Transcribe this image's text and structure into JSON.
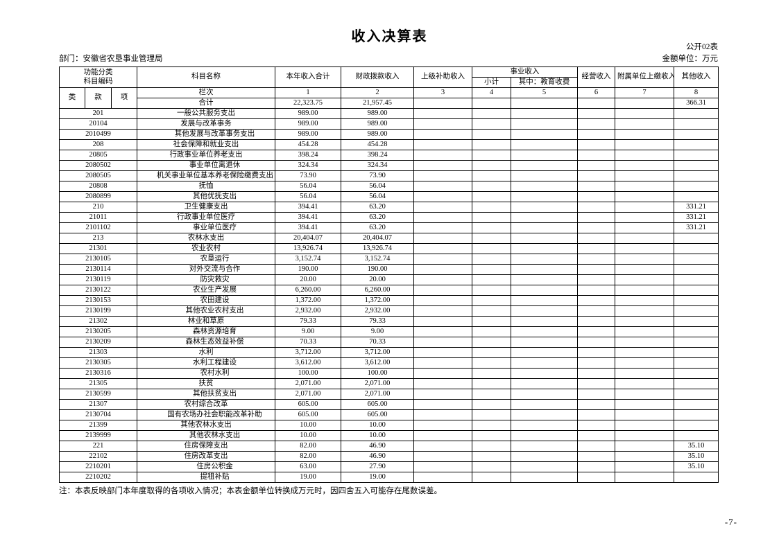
{
  "page": {
    "title": "收入决算表",
    "table_label": "公开02表",
    "department_label": "部门：安徽省农垦事业管理局",
    "unit_label": "金额单位：万元",
    "note": "注：本表反映部门本年度取得的各项收入情况；本表金额单位转换成万元时，因四舍五入可能存在尾数误差。",
    "page_number": "-7-"
  },
  "table": {
    "headers": {
      "code_group_line1": "功能分类",
      "code_group_line2": "科目编码",
      "code_cols": [
        "类",
        "款",
        "项"
      ],
      "subject_name": "科目名称",
      "col_total": "本年收入合计",
      "col_fiscal": "财政拨款收入",
      "col_superior": "上级补助收入",
      "col_business": "事业收入",
      "col_business_sub_1": "小计",
      "col_business_sub_2": "其中：教育收费",
      "col_operating": "经营收入",
      "col_affiliated": "附属单位上缴收入",
      "col_other": "其他收入",
      "lanci_label": "栏次",
      "col_numbers": [
        "1",
        "2",
        "3",
        "4",
        "5",
        "6",
        "7",
        "8"
      ]
    },
    "total_row": {
      "label": "合计",
      "values": [
        "22,323.75",
        "21,957.45",
        "",
        "",
        "",
        "",
        "",
        "366.31"
      ]
    },
    "rows": [
      {
        "code": "201",
        "name": "一般公共服务支出",
        "indent": 0,
        "v": [
          "989.00",
          "989.00",
          "",
          "",
          "",
          "",
          "",
          ""
        ]
      },
      {
        "code": "20104",
        "name": "发展与改革事务",
        "indent": 0,
        "v": [
          "989.00",
          "989.00",
          "",
          "",
          "",
          "",
          "",
          ""
        ]
      },
      {
        "code": "2010499",
        "name": "其他发展与改革事务支出",
        "indent": 1,
        "v": [
          "989.00",
          "989.00",
          "",
          "",
          "",
          "",
          "",
          ""
        ]
      },
      {
        "code": "208",
        "name": "社会保障和就业支出",
        "indent": 0,
        "v": [
          "454.28",
          "454.28",
          "",
          "",
          "",
          "",
          "",
          ""
        ]
      },
      {
        "code": "20805",
        "name": "行政事业单位养老支出",
        "indent": 0,
        "v": [
          "398.24",
          "398.24",
          "",
          "",
          "",
          "",
          "",
          ""
        ]
      },
      {
        "code": "2080502",
        "name": "事业单位离退休",
        "indent": 1,
        "v": [
          "324.34",
          "324.34",
          "",
          "",
          "",
          "",
          "",
          ""
        ]
      },
      {
        "code": "2080505",
        "name": "机关事业单位基本养老保险缴费支出",
        "indent": 1,
        "v": [
          "73.90",
          "73.90",
          "",
          "",
          "",
          "",
          "",
          ""
        ]
      },
      {
        "code": "20808",
        "name": "抚恤",
        "indent": 0,
        "v": [
          "56.04",
          "56.04",
          "",
          "",
          "",
          "",
          "",
          ""
        ]
      },
      {
        "code": "2080899",
        "name": "其他优抚支出",
        "indent": 1,
        "v": [
          "56.04",
          "56.04",
          "",
          "",
          "",
          "",
          "",
          ""
        ]
      },
      {
        "code": "210",
        "name": "卫生健康支出",
        "indent": 0,
        "v": [
          "394.41",
          "63.20",
          "",
          "",
          "",
          "",
          "",
          "331.21"
        ]
      },
      {
        "code": "21011",
        "name": "行政事业单位医疗",
        "indent": 0,
        "v": [
          "394.41",
          "63.20",
          "",
          "",
          "",
          "",
          "",
          "331.21"
        ]
      },
      {
        "code": "2101102",
        "name": "事业单位医疗",
        "indent": 1,
        "v": [
          "394.41",
          "63.20",
          "",
          "",
          "",
          "",
          "",
          "331.21"
        ]
      },
      {
        "code": "213",
        "name": "农林水支出",
        "indent": 0,
        "v": [
          "20,404.07",
          "20,404.07",
          "",
          "",
          "",
          "",
          "",
          ""
        ]
      },
      {
        "code": "21301",
        "name": "农业农村",
        "indent": 0,
        "v": [
          "13,926.74",
          "13,926.74",
          "",
          "",
          "",
          "",
          "",
          ""
        ]
      },
      {
        "code": "2130105",
        "name": "农垦运行",
        "indent": 1,
        "v": [
          "3,152.74",
          "3,152.74",
          "",
          "",
          "",
          "",
          "",
          ""
        ]
      },
      {
        "code": "2130114",
        "name": "对外交流与合作",
        "indent": 1,
        "v": [
          "190.00",
          "190.00",
          "",
          "",
          "",
          "",
          "",
          ""
        ]
      },
      {
        "code": "2130119",
        "name": "防灾救灾",
        "indent": 1,
        "v": [
          "20.00",
          "20.00",
          "",
          "",
          "",
          "",
          "",
          ""
        ]
      },
      {
        "code": "2130122",
        "name": "农业生产发展",
        "indent": 1,
        "v": [
          "6,260.00",
          "6,260.00",
          "",
          "",
          "",
          "",
          "",
          ""
        ]
      },
      {
        "code": "2130153",
        "name": "农田建设",
        "indent": 1,
        "v": [
          "1,372.00",
          "1,372.00",
          "",
          "",
          "",
          "",
          "",
          ""
        ]
      },
      {
        "code": "2130199",
        "name": "其他农业农村支出",
        "indent": 1,
        "v": [
          "2,932.00",
          "2,932.00",
          "",
          "",
          "",
          "",
          "",
          ""
        ]
      },
      {
        "code": "21302",
        "name": "林业和草原",
        "indent": 0,
        "v": [
          "79.33",
          "79.33",
          "",
          "",
          "",
          "",
          "",
          ""
        ]
      },
      {
        "code": "2130205",
        "name": "森林资源培育",
        "indent": 1,
        "v": [
          "9.00",
          "9.00",
          "",
          "",
          "",
          "",
          "",
          ""
        ]
      },
      {
        "code": "2130209",
        "name": "森林生态效益补偿",
        "indent": 1,
        "v": [
          "70.33",
          "70.33",
          "",
          "",
          "",
          "",
          "",
          ""
        ]
      },
      {
        "code": "21303",
        "name": "水利",
        "indent": 0,
        "v": [
          "3,712.00",
          "3,712.00",
          "",
          "",
          "",
          "",
          "",
          ""
        ]
      },
      {
        "code": "2130305",
        "name": "水利工程建设",
        "indent": 1,
        "v": [
          "3,612.00",
          "3,612.00",
          "",
          "",
          "",
          "",
          "",
          ""
        ]
      },
      {
        "code": "2130316",
        "name": "农村水利",
        "indent": 1,
        "v": [
          "100.00",
          "100.00",
          "",
          "",
          "",
          "",
          "",
          ""
        ]
      },
      {
        "code": "21305",
        "name": "扶贫",
        "indent": 0,
        "v": [
          "2,071.00",
          "2,071.00",
          "",
          "",
          "",
          "",
          "",
          ""
        ]
      },
      {
        "code": "2130599",
        "name": "其他扶贫支出",
        "indent": 1,
        "v": [
          "2,071.00",
          "2,071.00",
          "",
          "",
          "",
          "",
          "",
          ""
        ]
      },
      {
        "code": "21307",
        "name": "农村综合改革",
        "indent": 0,
        "v": [
          "605.00",
          "605.00",
          "",
          "",
          "",
          "",
          "",
          ""
        ]
      },
      {
        "code": "2130704",
        "name": "国有农场办社会职能改革补助",
        "indent": 1,
        "v": [
          "605.00",
          "605.00",
          "",
          "",
          "",
          "",
          "",
          ""
        ]
      },
      {
        "code": "21399",
        "name": "其他农林水支出",
        "indent": 0,
        "v": [
          "10.00",
          "10.00",
          "",
          "",
          "",
          "",
          "",
          ""
        ]
      },
      {
        "code": "2139999",
        "name": "其他农林水支出",
        "indent": 1,
        "v": [
          "10.00",
          "10.00",
          "",
          "",
          "",
          "",
          "",
          ""
        ]
      },
      {
        "code": "221",
        "name": "住房保障支出",
        "indent": 0,
        "v": [
          "82.00",
          "46.90",
          "",
          "",
          "",
          "",
          "",
          "35.10"
        ]
      },
      {
        "code": "22102",
        "name": "住房改革支出",
        "indent": 0,
        "v": [
          "82.00",
          "46.90",
          "",
          "",
          "",
          "",
          "",
          "35.10"
        ]
      },
      {
        "code": "2210201",
        "name": "住房公积金",
        "indent": 1,
        "v": [
          "63.00",
          "27.90",
          "",
          "",
          "",
          "",
          "",
          "35.10"
        ]
      },
      {
        "code": "2210202",
        "name": "提租补贴",
        "indent": 1,
        "v": [
          "19.00",
          "19.00",
          "",
          "",
          "",
          "",
          "",
          ""
        ]
      }
    ]
  }
}
